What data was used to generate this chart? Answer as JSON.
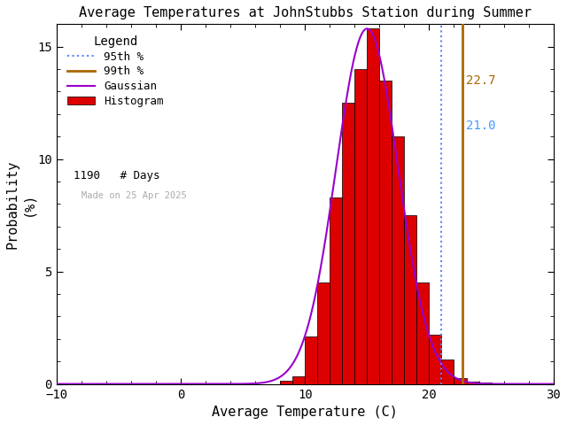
{
  "title": "Average Temperatures at JohnStubbs Station during Summer",
  "xlabel": "Average Temperature (C)",
  "ylabel": "Probability\n(%)",
  "xlim": [
    -10,
    30
  ],
  "ylim": [
    0,
    16
  ],
  "xticks": [
    -10,
    0,
    10,
    20,
    30
  ],
  "yticks": [
    0,
    5,
    10,
    15
  ],
  "mean": 15.0,
  "std": 2.5,
  "gauss_peak": 15.8,
  "n_days": 1190,
  "percentile_95": 21.0,
  "percentile_99": 22.7,
  "bin_edges": [
    8,
    9,
    10,
    11,
    12,
    13,
    14,
    15,
    16,
    17,
    18,
    19,
    20,
    21,
    22,
    23,
    24
  ],
  "bin_heights": [
    0.15,
    0.35,
    2.1,
    4.5,
    8.3,
    12.5,
    14.0,
    15.8,
    13.5,
    11.0,
    7.5,
    4.5,
    2.2,
    1.1,
    0.25,
    0.1,
    0.05
  ],
  "bar_color": "#dd0000",
  "bar_edgecolor": "#000000",
  "gaussian_color": "#9900cc",
  "percentile95_color": "#5588ff",
  "percentile99_color": "#aa6600",
  "bg_color": "#ffffff",
  "legend_title": "Legend",
  "date_label": "Made on 25 Apr 2025",
  "date_color": "#aaaaaa",
  "annotation_95": "21.0",
  "annotation_99": "22.7",
  "annotation_95_color": "#4499ff",
  "annotation_99_color": "#aa6600"
}
